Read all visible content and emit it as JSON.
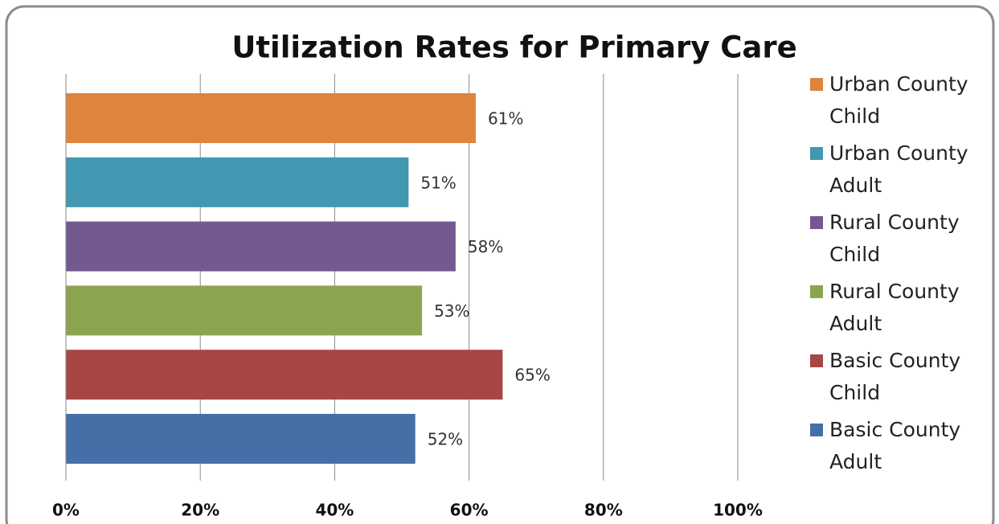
{
  "chart_data": {
    "type": "bar",
    "orientation": "horizontal",
    "title": "Utilization Rates for Primary Care",
    "series": [
      {
        "name": "Urban County Child",
        "color": "#dd843e",
        "values": [
          61
        ],
        "value_labels": [
          "61%"
        ]
      },
      {
        "name": "Urban County Adult",
        "color": "#4198b0",
        "values": [
          51
        ],
        "value_labels": [
          "51%"
        ]
      },
      {
        "name": "Rural County Child",
        "color": "#735990",
        "values": [
          58
        ],
        "value_labels": [
          "58%"
        ]
      },
      {
        "name": "Rural County Adult",
        "color": "#8ba54f",
        "values": [
          53
        ],
        "value_labels": [
          "53%"
        ]
      },
      {
        "name": "Basic County Child",
        "color": "#a84645",
        "values": [
          65
        ],
        "value_labels": [
          "65%"
        ]
      },
      {
        "name": "Basic County Adult",
        "color": "#4470a7",
        "values": [
          52
        ],
        "value_labels": [
          "52%"
        ]
      }
    ],
    "xlim": [
      0,
      100
    ],
    "xticks": [
      {
        "value": 0,
        "label": "0%"
      },
      {
        "value": 20,
        "label": "20%"
      },
      {
        "value": 40,
        "label": "40%"
      },
      {
        "value": 60,
        "label": "60%"
      },
      {
        "value": 80,
        "label": "80%"
      },
      {
        "value": 100,
        "label": "100%"
      }
    ],
    "grid": true,
    "legend": "right"
  }
}
